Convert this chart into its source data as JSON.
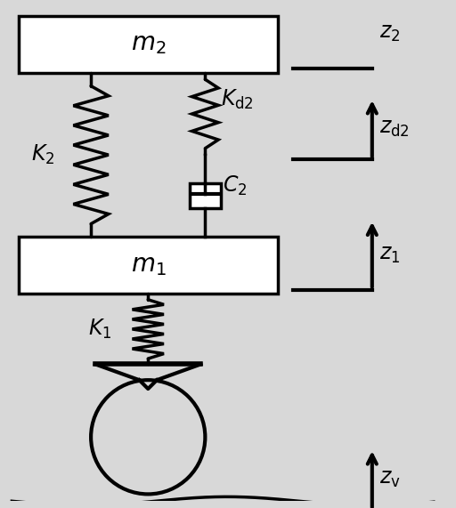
{
  "bg_color": "#d8d8d8",
  "line_color": "#000000",
  "box_color": "#ffffff",
  "fig_width": 5.12,
  "fig_height": 5.71,
  "lw": 2.5
}
